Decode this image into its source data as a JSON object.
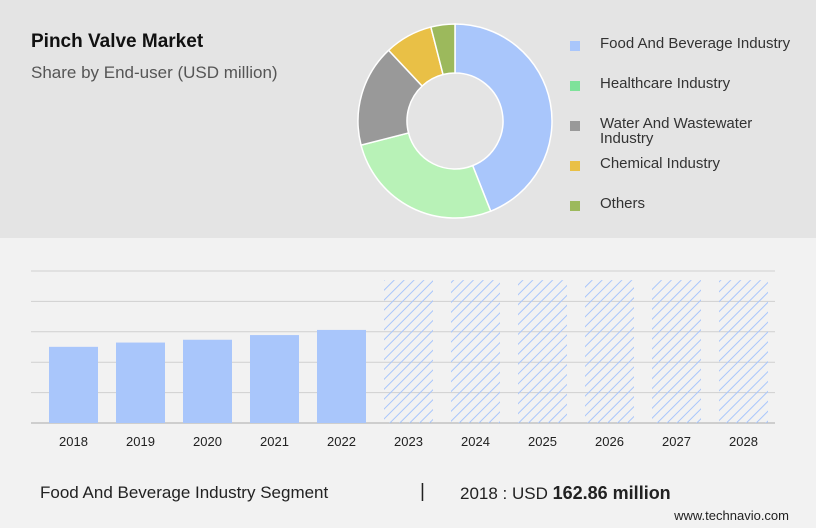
{
  "header": {
    "title": "Pinch Valve Market",
    "subtitle": "Share by End-user (USD million)"
  },
  "chart_data": [
    {
      "type": "pie",
      "donut": true,
      "title": "Pinch Valve Market",
      "subtitle": "Share by End-user (USD million)",
      "legend_position": "right",
      "slices": [
        {
          "label": "Food And Beverage Industry",
          "value": 44,
          "color": "#a9c6fb"
        },
        {
          "label": "Healthcare Industry",
          "value": 27,
          "color": "#b8f2b7"
        },
        {
          "label": "Water And Wastewater Industry",
          "value": 17,
          "color": "#999999"
        },
        {
          "label": "Chemical Industry",
          "value": 8,
          "color": "#e9c046"
        },
        {
          "label": "Others",
          "value": 4,
          "color": "#9cb95c"
        }
      ],
      "legend_colors": [
        "#a9c6fb",
        "#7ee29a",
        "#999999",
        "#e9c046",
        "#9cb95c"
      ]
    },
    {
      "type": "bar",
      "categories": [
        "2018",
        "2019",
        "2020",
        "2021",
        "2022",
        "2023",
        "2024",
        "2025",
        "2026",
        "2027",
        "2028"
      ],
      "values": [
        162.86,
        172,
        178,
        188,
        199,
        null,
        null,
        null,
        null,
        null,
        null
      ],
      "forecast_categories": [
        "2023",
        "2024",
        "2025",
        "2026",
        "2027",
        "2028"
      ],
      "forecast_style": "hatched",
      "ylim": [
        0,
        325
      ],
      "grid": true,
      "bar_color": "#a9c6fb",
      "hatch_color": "#a9c6fb"
    }
  ],
  "footer": {
    "segment": "Food And Beverage Industry Segment",
    "separator": "|",
    "value_prefix": "2018 : USD",
    "value": "162.86 million",
    "brand": "www.technavio.com"
  }
}
